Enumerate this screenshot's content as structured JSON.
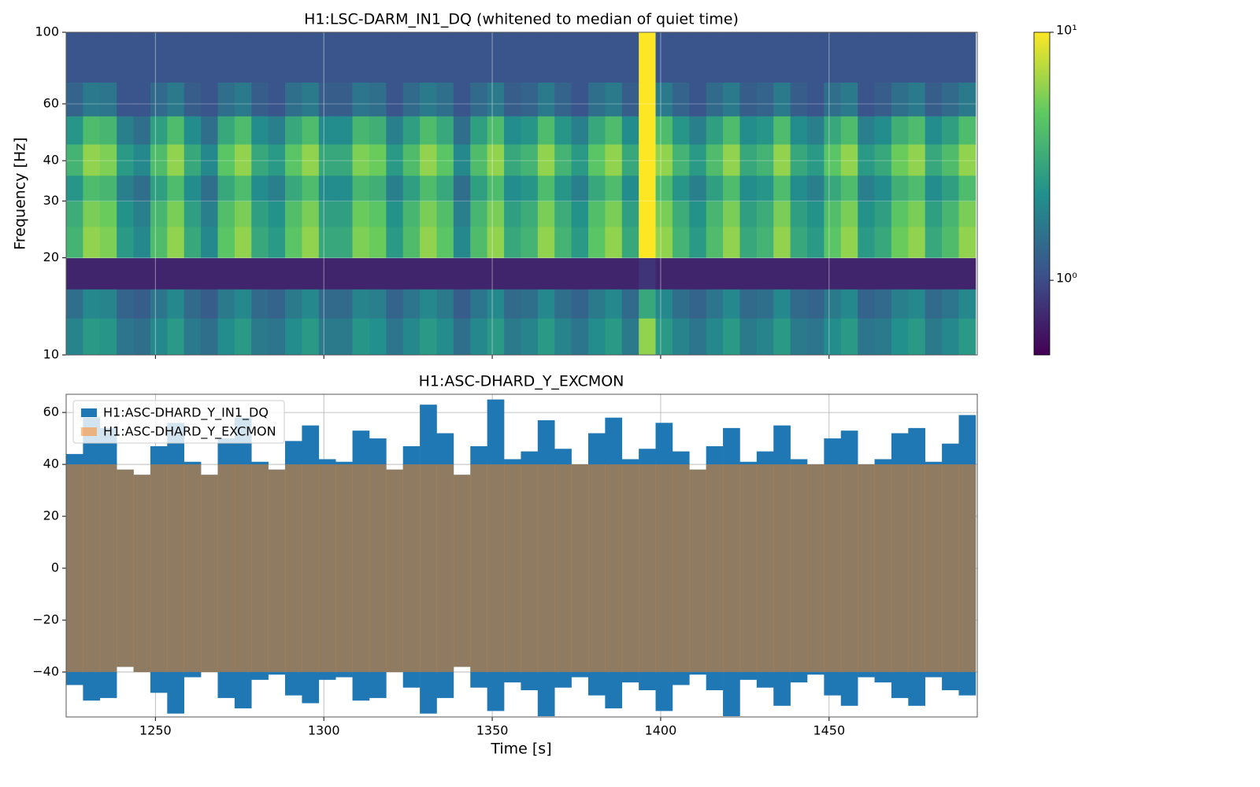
{
  "chart_data": [
    {
      "type": "heatmap",
      "title": "H1:LSC-DARM_IN1_DQ (whitened to median of quiet time)",
      "ylabel": "Frequency [Hz]",
      "xlim": [
        1223.5,
        1494
      ],
      "xticks": [
        1250,
        1300,
        1350,
        1400,
        1450
      ],
      "ylim": [
        10,
        100
      ],
      "yticks": [
        10,
        20,
        30,
        40,
        60,
        100
      ],
      "log_y": true,
      "grid": true,
      "time_bins": [
        1223.5,
        1228.5,
        1233.5,
        1238.5,
        1243.5,
        1248.5,
        1253.5,
        1258.5,
        1263.5,
        1268.5,
        1273.5,
        1278.5,
        1283.5,
        1288.5,
        1293.5,
        1298.5,
        1303.5,
        1308.5,
        1313.5,
        1318.5,
        1323.5,
        1328.5,
        1333.5,
        1338.5,
        1343.5,
        1348.5,
        1353.5,
        1358.5,
        1363.5,
        1368.5,
        1373.5,
        1378.5,
        1383.5,
        1388.5,
        1393.5,
        1398.5,
        1403.5,
        1408.5,
        1413.5,
        1418.5,
        1423.5,
        1428.5,
        1433.5,
        1438.5,
        1443.5,
        1448.5,
        1453.5,
        1458.5,
        1463.5,
        1468.5,
        1473.5,
        1478.5,
        1483.5,
        1488.5,
        1493.5
      ],
      "freq_bins": [
        10,
        13,
        16,
        20,
        25,
        30,
        36,
        45,
        55,
        70,
        100
      ],
      "values": [
        [
          1.9,
          2.5,
          2.4,
          1.6,
          1.5,
          2.0,
          2.5,
          1.7,
          1.5,
          2.1,
          2.5,
          1.7,
          1.6,
          2.1,
          2.5,
          1.7,
          1.7,
          2.4,
          2.2,
          1.6,
          2.0,
          2.5,
          2.1,
          1.5,
          2.0,
          2.5,
          1.7,
          1.9,
          2.5,
          1.9,
          1.6,
          2.1,
          2.5,
          1.7,
          6,
          2.5,
          1.9,
          1.6,
          2.0,
          2.5,
          1.7,
          1.9,
          2.5,
          1.7,
          1.6,
          2.1,
          2.5,
          1.6,
          1.7,
          2.2,
          2.5,
          1.7,
          2.0,
          2.5
        ],
        [
          1.5,
          2,
          1.9,
          1.3,
          1.2,
          1.6,
          2,
          1.4,
          1.2,
          1.7,
          2,
          1.4,
          1.3,
          1.7,
          2,
          1.4,
          1.4,
          1.9,
          1.8,
          1.3,
          1.6,
          2,
          1.7,
          1.2,
          1.6,
          2,
          1.4,
          1.5,
          2,
          1.5,
          1.3,
          1.7,
          2,
          1.4,
          3,
          2,
          1.5,
          1.3,
          1.6,
          2,
          1.4,
          1.5,
          2,
          1.4,
          1.3,
          1.7,
          2,
          1.3,
          1.4,
          1.8,
          2,
          1.4,
          1.6,
          2
        ],
        [
          0.7,
          0.7,
          0.7,
          0.7,
          0.7,
          0.7,
          0.7,
          0.7,
          0.7,
          0.7,
          0.7,
          0.7,
          0.7,
          0.7,
          0.7,
          0.7,
          0.7,
          0.7,
          0.7,
          0.7,
          0.7,
          0.7,
          0.7,
          0.7,
          0.7,
          0.7,
          0.7,
          0.7,
          0.7,
          0.7,
          0.7,
          0.7,
          0.7,
          0.7,
          0.8,
          0.7,
          0.7,
          0.7,
          0.7,
          0.7,
          0.7,
          0.7,
          0.7,
          0.7,
          0.7,
          0.7,
          0.7,
          0.7,
          0.7,
          0.7,
          0.7,
          0.7,
          0.7,
          0.7
        ],
        [
          3.5,
          6,
          5.5,
          2.5,
          2,
          4,
          6,
          3,
          2,
          4.5,
          6,
          3,
          2.5,
          4.5,
          6,
          3,
          3,
          5.5,
          5,
          2.5,
          4,
          6,
          4.5,
          2,
          4,
          6,
          3,
          3.5,
          6,
          3.5,
          2.5,
          4.5,
          6,
          3,
          10,
          6,
          3.5,
          2.5,
          4,
          6,
          3,
          3.5,
          6,
          3,
          2.5,
          4.5,
          6,
          2.5,
          3,
          5,
          6,
          3,
          4,
          6
        ],
        [
          3.2,
          5.4,
          5,
          2.3,
          1.8,
          3.6,
          5.4,
          2.7,
          1.8,
          4.1,
          5.4,
          2.7,
          2.3,
          4.1,
          5.4,
          2.7,
          2.7,
          5,
          4.5,
          2.3,
          3.6,
          5.4,
          4.1,
          1.8,
          3.6,
          5.4,
          2.7,
          3.2,
          5.4,
          3.2,
          2.3,
          4.1,
          5.4,
          2.7,
          10,
          5.4,
          3.2,
          2.3,
          3.6,
          5.4,
          2.7,
          3.2,
          5.4,
          2.7,
          2.3,
          4.1,
          5.4,
          2.3,
          2.7,
          4.5,
          5.4,
          2.7,
          3.6,
          5.4
        ],
        [
          2.4,
          3.9,
          3.6,
          1.8,
          1.5,
          2.7,
          3.9,
          2.1,
          1.5,
          3,
          3.9,
          2.1,
          1.8,
          3,
          3.9,
          2.1,
          2.1,
          3.6,
          3.3,
          1.8,
          2.7,
          3.9,
          3,
          1.5,
          2.7,
          3.9,
          2.1,
          2.4,
          3.9,
          2.4,
          1.8,
          3,
          3.9,
          2.1,
          10,
          3.9,
          2.4,
          1.8,
          2.7,
          3.9,
          2.1,
          2.4,
          3.9,
          2.1,
          1.8,
          3,
          3.9,
          1.8,
          2.1,
          3.3,
          3.9,
          2.1,
          2.7,
          3.9
        ],
        [
          3.5,
          6,
          5.5,
          2.5,
          2,
          4,
          6,
          3,
          2,
          4.5,
          6,
          3,
          2.5,
          4.5,
          6,
          3,
          3,
          5.5,
          5,
          2.5,
          4,
          6,
          4.5,
          2,
          4,
          6,
          3,
          3.5,
          6,
          3.5,
          2.5,
          4.5,
          6,
          3,
          10,
          6,
          3.5,
          2.5,
          4,
          6,
          3,
          3.5,
          6,
          3,
          2.5,
          4.5,
          6,
          2.5,
          3,
          5,
          6,
          3,
          4,
          6
        ],
        [
          2.4,
          3.9,
          3.6,
          1.8,
          1.5,
          2.7,
          3.9,
          2.1,
          1.5,
          3,
          3.9,
          2.1,
          1.8,
          3,
          3.9,
          2.1,
          2.1,
          3.6,
          3.3,
          1.8,
          2.7,
          3.9,
          3,
          1.5,
          2.7,
          3.9,
          2.1,
          2.4,
          3.9,
          2.4,
          1.8,
          3,
          3.9,
          2.1,
          10,
          3.9,
          2.4,
          1.8,
          2.7,
          3.9,
          2.1,
          2.4,
          3.9,
          2.1,
          1.8,
          3,
          3.9,
          1.8,
          2.1,
          3.3,
          3.9,
          2.1,
          2.7,
          3.9
        ],
        [
          1.3,
          1.7,
          1.6,
          1.1,
          1.1,
          1.4,
          1.7,
          1.2,
          1.1,
          1.5,
          1.7,
          1.2,
          1.1,
          1.5,
          1.7,
          1.2,
          1.2,
          1.6,
          1.5,
          1.1,
          1.4,
          1.7,
          1.5,
          1.1,
          1.4,
          1.7,
          1.2,
          1.3,
          1.7,
          1.3,
          1.1,
          1.5,
          1.7,
          1.2,
          10,
          1.7,
          1.3,
          1.1,
          1.4,
          1.7,
          1.2,
          1.3,
          1.7,
          1.2,
          1.1,
          1.5,
          1.7,
          1.1,
          1.2,
          1.5,
          1.7,
          1.2,
          1.4,
          1.7
        ],
        [
          1.1,
          1.1,
          1.1,
          1.1,
          1.1,
          1.1,
          1.1,
          1.1,
          1.1,
          1.1,
          1.1,
          1.1,
          1.1,
          1.1,
          1.1,
          1.1,
          1.1,
          1.1,
          1.1,
          1.1,
          1.1,
          1.1,
          1.1,
          1.1,
          1.1,
          1.1,
          1.1,
          1.1,
          1.1,
          1.1,
          1.1,
          1.1,
          1.1,
          1.1,
          10,
          1.1,
          1.1,
          1.1,
          1.1,
          1.1,
          1.1,
          1.1,
          1.1,
          1.1,
          1.1,
          1.1,
          1.1,
          1.1,
          1.1,
          1.1,
          1.1,
          1.1,
          1.1,
          1.1
        ]
      ],
      "colorbar": {
        "clim": [
          0.5,
          10
        ],
        "log": true,
        "ticks": [
          {
            "value": 1,
            "label": "10⁰"
          },
          {
            "value": 10,
            "label": "10¹"
          }
        ]
      }
    },
    {
      "type": "range",
      "title": "H1:ASC-DHARD_Y_EXCMON",
      "xlabel": "Time [s]",
      "xlim": [
        1223.5,
        1494
      ],
      "xticks": [
        1250,
        1300,
        1350,
        1400,
        1450
      ],
      "ylim": [
        -57.3,
        67
      ],
      "yticks": [
        {
          "value": -40,
          "label": "−40"
        },
        {
          "value": -20,
          "label": "−20"
        },
        0,
        20,
        40,
        60
      ],
      "grid": true,
      "legend": "upper left",
      "x": [
        1226,
        1231,
        1236,
        1241,
        1246,
        1251,
        1256,
        1261,
        1266,
        1271,
        1276,
        1281,
        1286,
        1291,
        1296,
        1301,
        1306,
        1311,
        1316,
        1321,
        1326,
        1331,
        1336,
        1341,
        1346,
        1351,
        1356,
        1361,
        1366,
        1371,
        1376,
        1381,
        1386,
        1391,
        1396,
        1401,
        1406,
        1411,
        1416,
        1421,
        1426,
        1431,
        1436,
        1441,
        1446,
        1451,
        1456,
        1461,
        1466,
        1471,
        1476,
        1481,
        1486,
        1491
      ],
      "series": [
        {
          "name": "H1:ASC-DHARD_Y_IN1_DQ",
          "color": "#1f77b4",
          "alpha": 1,
          "max": [
            44,
            58,
            54,
            38,
            36,
            47,
            56,
            41,
            36,
            50,
            58,
            41,
            38,
            49,
            55,
            42,
            41,
            53,
            50,
            38,
            47,
            63,
            52,
            36,
            47,
            65,
            42,
            45,
            57,
            46,
            40,
            52,
            58,
            42,
            46,
            56,
            45,
            38,
            47,
            54,
            41,
            45,
            55,
            42,
            40,
            50,
            53,
            40,
            42,
            52,
            54,
            41,
            48,
            59
          ],
          "min": [
            -45,
            -51,
            -50,
            -38,
            -40,
            -48,
            -56,
            -42,
            -40,
            -50,
            -54,
            -43,
            -41,
            -49,
            -52,
            -43,
            -42,
            -51,
            -50,
            -40,
            -46,
            -56,
            -50,
            -38,
            -46,
            -55,
            -44,
            -47,
            -57,
            -46,
            -42,
            -49,
            -54,
            -44,
            -47,
            -55,
            -45,
            -41,
            -47,
            -57,
            -43,
            -46,
            -53,
            -44,
            -41,
            -49,
            -53,
            -42,
            -44,
            -50,
            -53,
            -42,
            -47,
            -49
          ]
        },
        {
          "name": "H1:ASC-DHARD_Y_EXCMON",
          "color": "#ff7f0e",
          "alpha": 0.5,
          "max": [
            40,
            40,
            40,
            38,
            36,
            40,
            40,
            40,
            36,
            40,
            40,
            40,
            38,
            40,
            40,
            40,
            40,
            40,
            40,
            38,
            40,
            40,
            40,
            36,
            40,
            40,
            40,
            40,
            40,
            40,
            40,
            40,
            40,
            40,
            40,
            40,
            40,
            38,
            40,
            40,
            40,
            40,
            40,
            40,
            40,
            40,
            40,
            40,
            40,
            40,
            40,
            40,
            40,
            40
          ],
          "min": [
            -40,
            -40,
            -40,
            -38,
            -40,
            -40,
            -40,
            -40,
            -40,
            -40,
            -40,
            -40,
            -40,
            -40,
            -40,
            -40,
            -40,
            -40,
            -40,
            -40,
            -40,
            -40,
            -40,
            -38,
            -40,
            -40,
            -40,
            -40,
            -40,
            -40,
            -40,
            -40,
            -40,
            -40,
            -40,
            -40,
            -40,
            -40,
            -40,
            -40,
            -40,
            -40,
            -40,
            -40,
            -40,
            -40,
            -40,
            -40,
            -40,
            -40,
            -40,
            -40,
            -40,
            -40
          ]
        }
      ]
    }
  ]
}
